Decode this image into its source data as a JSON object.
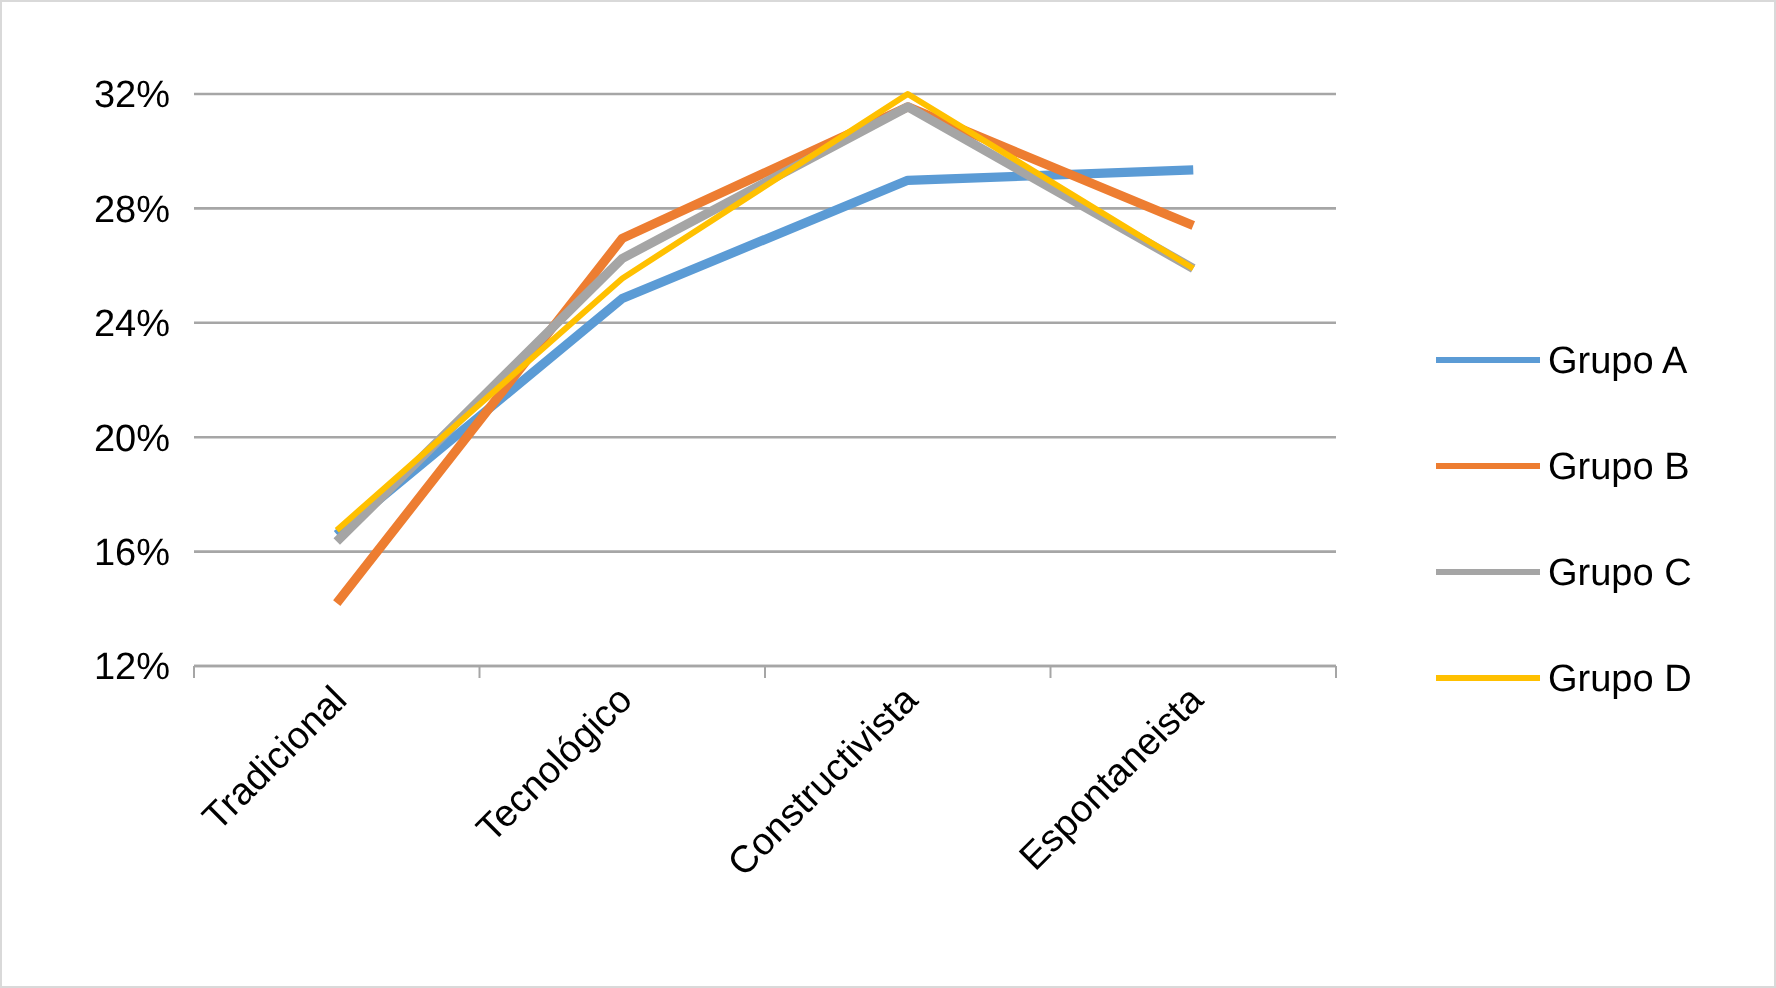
{
  "chart_data": {
    "type": "line",
    "categories": [
      "Tradicional",
      "Tecnológico",
      "Constructivista",
      "Espontaneista"
    ],
    "series": [
      {
        "name": "Grupo A",
        "color": "#5b9bd5",
        "values": [
          16.6,
          24.85,
          28.98,
          29.35
        ]
      },
      {
        "name": "Grupo B",
        "color": "#ed7d31",
        "values": [
          14.2,
          26.95,
          31.55,
          27.4
        ]
      },
      {
        "name": "Grupo C",
        "color": "#a5a5a5",
        "values": [
          16.35,
          26.25,
          31.55,
          25.9
        ]
      },
      {
        "name": "Grupo D",
        "color": "#ffc000",
        "values": [
          16.75,
          25.55,
          32,
          25.9
        ]
      }
    ],
    "ylim": [
      12,
      32
    ],
    "yticks": [
      {
        "value": 12,
        "label": "12%"
      },
      {
        "value": 16,
        "label": "16%"
      },
      {
        "value": 20,
        "label": "20%"
      },
      {
        "value": 24,
        "label": "24%"
      },
      {
        "value": 28,
        "label": "28%"
      },
      {
        "value": 32,
        "label": "32%"
      }
    ],
    "grid": "y",
    "legend": "right",
    "marker": "none",
    "line_style": "solid"
  }
}
